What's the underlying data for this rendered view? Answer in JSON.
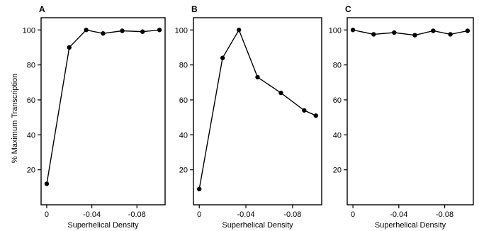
{
  "chart_data": [
    {
      "type": "line",
      "panel_label": "A",
      "ylabel": "% Maximum Transcription",
      "xlabel": "Superhelical Density",
      "x_ticks": [
        0,
        -0.04,
        -0.08
      ],
      "x_tick_labels": [
        "0",
        "-0.04",
        "-0.08"
      ],
      "y_ticks": [
        20,
        40,
        60,
        80,
        100
      ],
      "y_tick_labels": [
        "20",
        "40",
        "60",
        "80",
        "100"
      ],
      "xlim": [
        0.005,
        -0.105
      ],
      "ylim": [
        0,
        107
      ],
      "grid": false,
      "series": [
        {
          "x": [
            0,
            -0.02,
            -0.035,
            -0.05,
            -0.067,
            -0.085,
            -0.1
          ],
          "y": [
            12,
            90,
            100,
            98,
            99.5,
            99,
            100
          ]
        }
      ]
    },
    {
      "type": "line",
      "panel_label": "B",
      "ylabel": "",
      "xlabel": "Superhelical Density",
      "x_ticks": [
        0,
        -0.04,
        -0.08
      ],
      "x_tick_labels": [
        "0",
        "-0.04",
        "-0.08"
      ],
      "y_ticks": [
        20,
        40,
        60,
        80,
        100
      ],
      "y_tick_labels": [
        "20",
        "40",
        "60",
        "80",
        "100"
      ],
      "xlim": [
        0.005,
        -0.105
      ],
      "ylim": [
        0,
        107
      ],
      "grid": false,
      "series": [
        {
          "x": [
            0,
            -0.02,
            -0.034,
            -0.05,
            -0.07,
            -0.09,
            -0.1
          ],
          "y": [
            9,
            84,
            100,
            73,
            64,
            54,
            51
          ]
        }
      ]
    },
    {
      "type": "line",
      "panel_label": "C",
      "ylabel": "",
      "xlabel": "Superhelical Density",
      "x_ticks": [
        0,
        -0.04,
        -0.08
      ],
      "x_tick_labels": [
        "0",
        "-0.04",
        "-0.08"
      ],
      "y_ticks": [
        20,
        40,
        60,
        80,
        100
      ],
      "y_tick_labels": [
        "20",
        "40",
        "60",
        "80",
        "100"
      ],
      "xlim": [
        0.005,
        -0.105
      ],
      "ylim": [
        0,
        107
      ],
      "grid": false,
      "series": [
        {
          "x": [
            0,
            -0.018,
            -0.036,
            -0.054,
            -0.07,
            -0.085,
            -0.1
          ],
          "y": [
            100,
            97.5,
            98.5,
            97,
            99.5,
            97.5,
            99.5
          ]
        }
      ]
    }
  ]
}
